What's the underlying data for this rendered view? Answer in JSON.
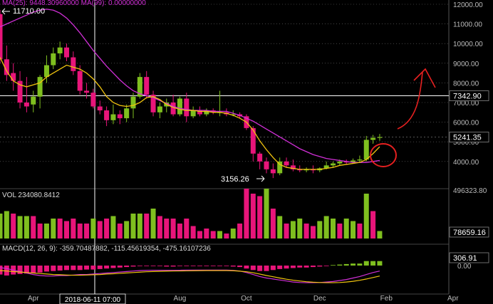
{
  "chart_data": {
    "type": "candlestick",
    "colors": {
      "up": "#7fbf1f",
      "down": "#e8157a",
      "ma25": "#d02fd6",
      "ma99": "#f1c40f",
      "annotation": "#e52020",
      "crosshair": "#ffffff",
      "grid": "#6e6e6e",
      "axis_text": "#bbbbbb"
    },
    "main": {
      "ma_label": "MA(25): 9448.30960000 MA(99): 0.00000000",
      "high_label": "11710.00",
      "low_label": "3156.26",
      "price_levels": [
        12000,
        11000,
        10000,
        9000,
        8000,
        7000,
        6000,
        5000,
        4000
      ],
      "y_tick_labels": [
        "12000.00",
        "11000.00",
        "10000.00",
        "9000.00",
        "8000.00",
        "7000.00",
        "6000.00",
        "5000.00",
        "4000.00"
      ],
      "crosshair_label": "7342.90",
      "crosshair_value": 7342.9,
      "last_price_label": "5241.35",
      "last_price": 5241.35,
      "candles": [
        [
          11500,
          11710,
          9000,
          9200
        ],
        [
          9200,
          9900,
          8100,
          8400
        ],
        [
          8500,
          9000,
          7600,
          8100
        ],
        [
          8100,
          8600,
          6700,
          7000
        ],
        [
          7000,
          8300,
          6500,
          6800
        ],
        [
          6900,
          7600,
          6500,
          7300
        ],
        [
          7300,
          8400,
          6700,
          8300
        ],
        [
          8300,
          9400,
          8000,
          8900
        ],
        [
          8900,
          9800,
          8700,
          9500
        ],
        [
          9500,
          10100,
          9200,
          9800
        ],
        [
          9800,
          10000,
          9100,
          9300
        ],
        [
          9300,
          9600,
          8400,
          8600
        ],
        [
          8600,
          8900,
          7400,
          7600
        ],
        [
          7600,
          8000,
          7200,
          7500
        ],
        [
          7500,
          7700,
          6700,
          6800
        ],
        [
          6800,
          7100,
          6400,
          6600
        ],
        [
          6600,
          6800,
          5800,
          6100
        ],
        [
          6100,
          6900,
          5900,
          6400
        ],
        [
          6400,
          6600,
          5900,
          6200
        ],
        [
          6200,
          6900,
          6000,
          6700
        ],
        [
          6700,
          7500,
          6200,
          7300
        ],
        [
          7300,
          8500,
          7200,
          8300
        ],
        [
          8300,
          8600,
          7200,
          7400
        ],
        [
          7400,
          7600,
          6300,
          6500
        ],
        [
          6500,
          7000,
          6200,
          6800
        ],
        [
          6800,
          7200,
          6500,
          7000
        ],
        [
          7000,
          7400,
          6300,
          6400
        ],
        [
          6400,
          7300,
          6300,
          7200
        ],
        [
          7200,
          7500,
          6000,
          6300
        ],
        [
          6300,
          6800,
          6200,
          6600
        ],
        [
          6600,
          6800,
          6300,
          6400
        ],
        [
          6400,
          6700,
          6300,
          6600
        ],
        [
          6600,
          6700,
          6400,
          6500
        ],
        [
          6500,
          7600,
          6300,
          6500
        ],
        [
          6500,
          6700,
          6300,
          6400
        ],
        [
          6400,
          6600,
          6300,
          6400
        ],
        [
          6400,
          6500,
          6200,
          6300
        ],
        [
          6300,
          6400,
          5600,
          5700
        ],
        [
          5700,
          5800,
          4000,
          4400
        ],
        [
          4400,
          4500,
          3600,
          4000
        ],
        [
          4000,
          4200,
          3400,
          3600
        ],
        [
          3600,
          3900,
          3156,
          3400
        ],
        [
          3400,
          4200,
          3300,
          4000
        ],
        [
          4000,
          4200,
          3700,
          3800
        ],
        [
          3800,
          4100,
          3500,
          3600
        ],
        [
          3600,
          3800,
          3450,
          3550
        ],
        [
          3550,
          3700,
          3450,
          3600
        ],
        [
          3600,
          3800,
          3400,
          3550
        ],
        [
          3550,
          3700,
          3450,
          3650
        ],
        [
          3650,
          4000,
          3600,
          3800
        ],
        [
          3800,
          4000,
          3700,
          3900
        ],
        [
          3900,
          4100,
          3800,
          4000
        ],
        [
          4000,
          4100,
          3850,
          3950
        ],
        [
          3950,
          4150,
          3900,
          4050
        ],
        [
          4050,
          4300,
          3950,
          4100
        ],
        [
          4100,
          5300,
          4000,
          5100
        ],
        [
          5100,
          5350,
          4900,
          5200
        ],
        [
          5200,
          5400,
          5050,
          5241
        ]
      ],
      "ma25": [
        10850,
        11000,
        11150,
        11300,
        11450,
        11600,
        11700,
        11750,
        11700,
        11550,
        11300,
        10950,
        10550,
        10100,
        9650,
        9250,
        8850,
        8500,
        8150,
        7850,
        7600,
        7450,
        7350,
        7250,
        7100,
        6950,
        6800,
        6700,
        6650,
        6600,
        6600,
        6600,
        6550,
        6550,
        6550,
        6450,
        6350,
        6200,
        6050,
        5850,
        5650,
        5450,
        5250,
        5050,
        4850,
        4650,
        4500,
        4350,
        4250,
        4150,
        4100,
        4050,
        4000,
        3950,
        3950,
        3950,
        4000,
        4050
      ],
      "ma99": [
        9300,
        8600,
        8100,
        7900,
        7800,
        7900,
        8000,
        8300,
        8500,
        8700,
        8900,
        8800,
        8700,
        8500,
        8200,
        7800,
        7300,
        7000,
        6850,
        6800,
        6850,
        7000,
        7250,
        7300,
        7150,
        6900,
        6750,
        6650,
        6600,
        6600,
        6550,
        6550,
        6500,
        6500,
        6450,
        6350,
        6200,
        6000,
        5600,
        5050,
        4600,
        4200,
        3850,
        3700,
        3650,
        3600,
        3600,
        3600,
        3600,
        3650,
        3700,
        3800,
        3850,
        3900,
        3950,
        4100,
        4400,
        4750
      ]
    },
    "volume": {
      "label": "VOL 234080.8412",
      "top_label": "496323.80",
      "last_label": "78659.16",
      "last_value": 78659.16,
      "values": [
        [
          0.5,
          "up"
        ],
        [
          0.55,
          "up"
        ],
        [
          0.5,
          "down"
        ],
        [
          0.45,
          "up"
        ],
        [
          0.45,
          "up"
        ],
        [
          0.45,
          "down"
        ],
        [
          0.3,
          "down"
        ],
        [
          0.3,
          "up"
        ],
        [
          0.4,
          "up"
        ],
        [
          0.4,
          "down"
        ],
        [
          0.35,
          "down"
        ],
        [
          0.4,
          "down"
        ],
        [
          0.3,
          "down"
        ],
        [
          0.3,
          "down"
        ],
        [
          0.4,
          "up"
        ],
        [
          0.35,
          "down"
        ],
        [
          0.4,
          "down"
        ],
        [
          0.45,
          "up"
        ],
        [
          0.3,
          "down"
        ],
        [
          0.35,
          "up"
        ],
        [
          0.5,
          "up"
        ],
        [
          0.5,
          "up"
        ],
        [
          0.5,
          "down"
        ],
        [
          0.6,
          "up"
        ],
        [
          0.45,
          "down"
        ],
        [
          0.4,
          "down"
        ],
        [
          0.4,
          "down"
        ],
        [
          0.3,
          "down"
        ],
        [
          0.4,
          "down"
        ],
        [
          0.25,
          "down"
        ],
        [
          0.15,
          "down"
        ],
        [
          0.2,
          "down"
        ],
        [
          0.15,
          "down"
        ],
        [
          0.15,
          "up"
        ],
        [
          0.1,
          "down"
        ],
        [
          0.2,
          "up"
        ],
        [
          0.3,
          "down"
        ],
        [
          1.0,
          "down"
        ],
        [
          0.9,
          "down"
        ],
        [
          0.85,
          "down"
        ],
        [
          1.0,
          "up"
        ],
        [
          0.6,
          "down"
        ],
        [
          0.45,
          "up"
        ],
        [
          0.3,
          "down"
        ],
        [
          0.35,
          "up"
        ],
        [
          0.4,
          "up"
        ],
        [
          0.3,
          "down"
        ],
        [
          0.25,
          "down"
        ],
        [
          0.35,
          "up"
        ],
        [
          0.45,
          "up"
        ],
        [
          0.4,
          "up"
        ],
        [
          0.3,
          "down"
        ],
        [
          0.4,
          "up"
        ],
        [
          0.35,
          "up"
        ],
        [
          0.3,
          "down"
        ],
        [
          0.9,
          "up"
        ],
        [
          0.55,
          "down"
        ],
        [
          0.15,
          "up"
        ]
      ]
    },
    "macd": {
      "label": "MACD(12, 26, 9): -359.70487882, -115.45619354, -475.16107236",
      "top_label": "306.91",
      "zero_label": "0.00",
      "hist": [
        -0.9,
        -1.0,
        -0.9,
        -0.85,
        -0.8,
        -0.75,
        -0.7,
        -0.6,
        -0.55,
        -0.5,
        -0.45,
        -0.45,
        -0.45,
        -0.4,
        -0.4,
        -0.35,
        -0.3,
        -0.25,
        -0.2,
        -0.15,
        -0.1,
        -0.05,
        -0.05,
        -0.05,
        -0.05,
        -0.1,
        -0.1,
        -0.05,
        -0.05,
        -0.05,
        -0.05,
        -0.05,
        -0.05,
        -0.05,
        -0.05,
        -0.1,
        -0.15,
        -0.3,
        -0.45,
        -0.55,
        -0.55,
        -0.45,
        -0.35,
        -0.3,
        -0.25,
        -0.2,
        -0.2,
        -0.15,
        -0.1,
        -0.05,
        0.05,
        0.1,
        0.15,
        0.2,
        0.2,
        0.45,
        0.45,
        0.45
      ],
      "dif": [
        -0.2,
        -0.3,
        -0.45,
        -0.6,
        -0.75,
        -0.9,
        -1.0,
        -1.05,
        -1.05,
        -1.0,
        -1.0,
        -0.95,
        -0.9,
        -0.9,
        -0.85,
        -0.8,
        -0.75,
        -0.7,
        -0.65,
        -0.6,
        -0.55,
        -0.5,
        -0.48,
        -0.47,
        -0.47,
        -0.47,
        -0.47,
        -0.47,
        -0.45,
        -0.45,
        -0.45,
        -0.45,
        -0.45,
        -0.45,
        -0.45,
        -0.48,
        -0.55,
        -0.7,
        -0.9,
        -1.1,
        -1.25,
        -1.35,
        -1.45,
        -1.55,
        -1.65,
        -1.7,
        -1.72,
        -1.72,
        -1.7,
        -1.65,
        -1.6,
        -1.5,
        -1.4,
        -1.25,
        -1.1,
        -0.9,
        -0.7,
        -0.55
      ],
      "dea": [
        -0.5,
        -0.55,
        -0.6,
        -0.65,
        -0.7,
        -0.75,
        -0.8,
        -0.85,
        -0.9,
        -0.92,
        -0.95,
        -0.97,
        -0.97,
        -0.95,
        -0.92,
        -0.9,
        -0.85,
        -0.82,
        -0.78,
        -0.74,
        -0.7,
        -0.66,
        -0.62,
        -0.6,
        -0.58,
        -0.56,
        -0.55,
        -0.54,
        -0.53,
        -0.52,
        -0.51,
        -0.5,
        -0.5,
        -0.5,
        -0.5,
        -0.52,
        -0.56,
        -0.62,
        -0.72,
        -0.85,
        -1.0,
        -1.12,
        -1.25,
        -1.37,
        -1.47,
        -1.55,
        -1.62,
        -1.67,
        -1.7,
        -1.72,
        -1.72,
        -1.7,
        -1.65,
        -1.58,
        -1.48,
        -1.35,
        -1.2,
        -1.05
      ]
    },
    "x_axis": {
      "labels": [
        "Apr",
        "Aug",
        "Oct",
        "Dec",
        "Feb",
        "Apr"
      ],
      "label_index": [
        5,
        27,
        37,
        48,
        58,
        68
      ],
      "crosshair_label": "2018-06-11 07:00"
    }
  }
}
